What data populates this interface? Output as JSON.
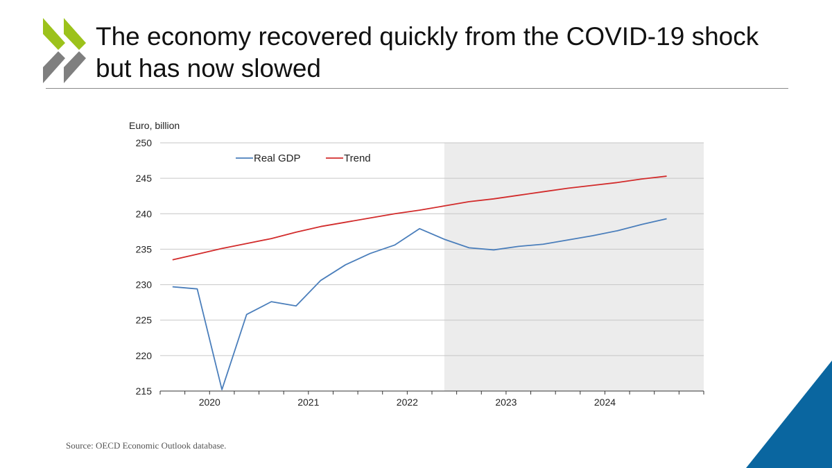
{
  "slide": {
    "title_line1": "The economy recovered quickly from the COVID-19 shock",
    "title_line2": "but has now slowed",
    "source": "Source: OECD Economic Outlook database.",
    "colors": {
      "logo_green": "#9cc21b",
      "logo_grey": "#7f7f7f",
      "corner_blue": "#0a66a0",
      "projection_shade": "#ececec"
    }
  },
  "chart_data": {
    "type": "line",
    "title": "",
    "ylabel": "Euro, billion",
    "xlabel": "",
    "ylim": [
      215,
      250
    ],
    "yticks": [
      215,
      220,
      225,
      230,
      235,
      240,
      245,
      250
    ],
    "xlim": [
      2019.5,
      2025.0
    ],
    "year_ticks": [
      "2020",
      "2021",
      "2022",
      "2023",
      "2024"
    ],
    "projection_start": 2022.375,
    "legend_position": "top-left",
    "grid": true,
    "series": [
      {
        "name": "Real GDP",
        "color": "#4a7ebb",
        "x": [
          2019.625,
          2019.875,
          2020.125,
          2020.375,
          2020.625,
          2020.875,
          2021.125,
          2021.375,
          2021.625,
          2021.875,
          2022.125,
          2022.375,
          2022.625,
          2022.875,
          2023.125,
          2023.375,
          2023.625,
          2023.875,
          2024.125,
          2024.375,
          2024.625
        ],
        "values": [
          229.7,
          229.4,
          215.2,
          225.8,
          227.6,
          227.0,
          230.6,
          232.8,
          234.4,
          235.6,
          237.9,
          236.4,
          235.2,
          234.9,
          235.4,
          235.7,
          236.3,
          236.9,
          237.6,
          238.5,
          239.3
        ]
      },
      {
        "name": "Trend",
        "color": "#d22b2b",
        "x": [
          2019.625,
          2019.875,
          2020.125,
          2020.375,
          2020.625,
          2020.875,
          2021.125,
          2021.375,
          2021.625,
          2021.875,
          2022.125,
          2022.375,
          2022.625,
          2022.875,
          2023.125,
          2023.375,
          2023.625,
          2023.875,
          2024.125,
          2024.375,
          2024.625
        ],
        "values": [
          233.5,
          234.3,
          235.1,
          235.8,
          236.5,
          237.4,
          238.2,
          238.8,
          239.4,
          240.0,
          240.5,
          241.1,
          241.7,
          242.1,
          242.6,
          243.1,
          243.6,
          244.0,
          244.4,
          244.9,
          245.3
        ]
      }
    ]
  }
}
